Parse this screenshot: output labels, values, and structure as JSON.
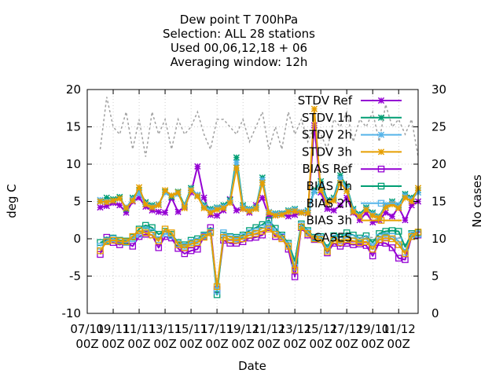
{
  "chart_data": {
    "type": "line",
    "title_lines": [
      "Dew point T 700hPa",
      "Selection: ALL      28 stations",
      "Used  00,06,12,18 + 06",
      "Averaging window: 12h"
    ],
    "xlabel": "Date",
    "ylabel": "deg C",
    "y2label": "No cases",
    "ylim": [
      -10,
      20
    ],
    "y2lim": [
      0,
      30
    ],
    "y_ticks": [
      "-10",
      "-5",
      "0",
      "5",
      "10",
      "15",
      "20"
    ],
    "y2_ticks": [
      "0",
      "5",
      "10",
      "15",
      "20",
      "25",
      "30"
    ],
    "x_ticks": [
      {
        "top": "07/11",
        "bottom": "00Z"
      },
      {
        "top": "09/11",
        "bottom": "00Z"
      },
      {
        "top": "11/11",
        "bottom": "00Z"
      },
      {
        "top": "13/11",
        "bottom": "00Z"
      },
      {
        "top": "15/11",
        "bottom": "00Z"
      },
      {
        "top": "17/11",
        "bottom": "00Z"
      },
      {
        "top": "19/11",
        "bottom": "00Z"
      },
      {
        "top": "21/11",
        "bottom": "00Z"
      },
      {
        "top": "23/11",
        "bottom": "00Z"
      },
      {
        "top": "25/11",
        "bottom": "00Z"
      },
      {
        "top": "27/11",
        "bottom": "00Z"
      },
      {
        "top": "29/11",
        "bottom": "00Z"
      },
      {
        "top": "01/12",
        "bottom": "00Z"
      }
    ],
    "x_range_days": [
      0,
      25.5
    ],
    "x_days": [
      1,
      1.5,
      2,
      2.5,
      3,
      3.5,
      4,
      4.5,
      5,
      5.5,
      6,
      6.5,
      7,
      7.5,
      8,
      8.5,
      9,
      9.5,
      10,
      10.5,
      11,
      11.5,
      12,
      12.5,
      13,
      13.5,
      14,
      14.5,
      15,
      15.5,
      16,
      16.5,
      17,
      17.5,
      18,
      18.5,
      19,
      19.5,
      20,
      20.5,
      21,
      21.5,
      22,
      22.5,
      23,
      23.5,
      24,
      24.5,
      25,
      25.5
    ],
    "series": [
      {
        "name": "STDV Ref",
        "color": "#9400d3",
        "marker": "asterisk",
        "values": [
          4.2,
          4.4,
          4.8,
          4.5,
          3.5,
          5.0,
          5.5,
          4.3,
          3.8,
          3.6,
          3.5,
          5.5,
          3.6,
          4.3,
          6.2,
          9.7,
          5.5,
          3.2,
          3.1,
          3.8,
          5.3,
          3.8,
          4.0,
          3.5,
          4.5,
          5.5,
          3.0,
          3.2,
          3.4,
          3.0,
          3.2,
          3.5,
          3.5,
          15.2,
          6.2,
          4.0,
          3.8,
          4.5,
          5.5,
          3.5,
          2.5,
          3.5,
          2.2,
          2.5,
          3.5,
          3.0,
          4.2,
          2.5,
          4.5,
          5.0
        ]
      },
      {
        "name": "STDV 1h",
        "color": "#009e73",
        "marker": "star",
        "values": [
          5.0,
          5.5,
          5.3,
          5.6,
          4.0,
          5.5,
          6.5,
          4.9,
          4.5,
          4.6,
          6.3,
          5.6,
          6.3,
          4.5,
          6.8,
          5.8,
          4.5,
          4.0,
          4.2,
          4.5,
          5.2,
          10.9,
          4.5,
          4.0,
          4.2,
          8.2,
          3.5,
          3.4,
          3.4,
          3.8,
          4.0,
          3.5,
          3.8,
          6.5,
          7.7,
          5.2,
          5.5,
          8.5,
          7.0,
          4.0,
          3.3,
          4.2,
          3.5,
          3.0,
          4.5,
          5.0,
          4.5,
          6.0,
          5.5,
          6.5
        ]
      },
      {
        "name": "STDV 2h",
        "color": "#56b4e9",
        "marker": "star",
        "values": [
          5.2,
          5.0,
          5.1,
          5.4,
          4.2,
          5.3,
          6.1,
          4.7,
          4.3,
          4.6,
          6.2,
          5.8,
          6.0,
          4.4,
          6.6,
          5.9,
          4.3,
          3.8,
          4.1,
          4.3,
          5.0,
          10.2,
          4.3,
          3.9,
          4.1,
          7.9,
          3.6,
          3.3,
          3.3,
          3.7,
          3.9,
          3.6,
          3.7,
          6.3,
          7.2,
          5.0,
          5.3,
          8.1,
          6.7,
          3.8,
          3.1,
          4.0,
          3.3,
          2.9,
          4.4,
          4.8,
          4.3,
          5.8,
          5.3,
          6.2
        ]
      },
      {
        "name": "STDV 3h",
        "color": "#e69f00",
        "marker": "star",
        "values": [
          5.0,
          4.9,
          5.1,
          5.4,
          4.1,
          5.1,
          6.9,
          4.6,
          4.2,
          4.5,
          6.5,
          5.8,
          6.2,
          4.1,
          6.5,
          5.7,
          4.1,
          3.5,
          3.9,
          4.1,
          4.8,
          9.5,
          4.0,
          3.7,
          4.0,
          7.5,
          3.5,
          3.1,
          3.2,
          3.6,
          3.7,
          3.5,
          3.4,
          17.4,
          6.5,
          4.8,
          5.1,
          7.5,
          6.4,
          3.6,
          3.0,
          3.9,
          3.1,
          2.8,
          4.2,
          4.6,
          4.1,
          5.5,
          5.0,
          6.8
        ]
      },
      {
        "name": "BIAS Ref",
        "color": "#9400d3",
        "marker": "square",
        "values": [
          -2.1,
          0.2,
          -0.5,
          -0.8,
          -0.5,
          -1.0,
          0.3,
          0.6,
          0.5,
          -1.2,
          0.3,
          0.1,
          -1.3,
          -2.0,
          -1.6,
          -1.4,
          0.3,
          1.5,
          -6.8,
          -0.2,
          -0.6,
          -0.6,
          -0.4,
          0.1,
          0.2,
          0.5,
          1.5,
          0.3,
          0.2,
          -1.4,
          -5.1,
          1.5,
          0.5,
          -0.1,
          -0.1,
          -1.9,
          -0.6,
          -1.0,
          -0.6,
          -0.8,
          -0.7,
          -0.9,
          -2.3,
          -0.5,
          -0.6,
          -1.2,
          -2.6,
          -2.8,
          0.3,
          0.5
        ]
      },
      {
        "name": "BIAS 1h",
        "color": "#009e73",
        "marker": "square",
        "values": [
          -0.5,
          -0.2,
          0.1,
          -0.2,
          -0.3,
          0.2,
          1.3,
          1.8,
          1.5,
          0.6,
          1.0,
          0.6,
          -0.5,
          -0.8,
          -0.2,
          0.0,
          0.5,
          1.0,
          -7.5,
          0.5,
          0.3,
          0.2,
          0.5,
          1.1,
          1.5,
          1.9,
          2.5,
          1.4,
          0.5,
          -0.6,
          -3.0,
          2.0,
          1.1,
          0.2,
          0.3,
          -1.2,
          0.4,
          0.2,
          0.8,
          0.5,
          0.1,
          0.4,
          -0.5,
          0.7,
          1.0,
          1.1,
          1.0,
          -1.1,
          0.7,
          0.8
        ]
      },
      {
        "name": "BIAS 2h",
        "color": "#56b4e9",
        "marker": "square",
        "values": [
          -1.0,
          -0.3,
          0.0,
          -0.3,
          -0.5,
          0.0,
          0.6,
          1.2,
          0.9,
          -0.1,
          0.7,
          0.4,
          -0.7,
          -1.0,
          -0.5,
          -0.3,
          0.4,
          0.9,
          -7.0,
          0.8,
          0.2,
          0.0,
          0.3,
          0.8,
          1.0,
          1.4,
          1.9,
          1.0,
          0.3,
          -0.8,
          -3.8,
          1.8,
          0.9,
          0.1,
          0.1,
          -1.5,
          0.1,
          -0.2,
          0.2,
          0.1,
          -0.2,
          0.0,
          -1.0,
          0.2,
          0.4,
          0.3,
          -0.3,
          -1.8,
          0.5,
          0.6
        ]
      },
      {
        "name": "BIAS 3h",
        "color": "#e69f00",
        "marker": "square",
        "values": [
          -1.6,
          -0.4,
          -0.2,
          -0.3,
          -0.4,
          0.3,
          1.1,
          0.8,
          0.5,
          -0.3,
          1.3,
          0.8,
          -0.8,
          -1.2,
          -0.7,
          -0.5,
          0.2,
          0.8,
          -6.4,
          0.2,
          -0.1,
          -0.2,
          0.0,
          0.5,
          0.7,
          1.0,
          1.3,
          0.6,
          0.0,
          -1.0,
          -4.2,
          1.6,
          0.7,
          0.0,
          -0.1,
          -1.7,
          -0.2,
          -0.5,
          -0.1,
          -0.3,
          -0.5,
          -0.4,
          -1.4,
          -0.1,
          0.1,
          0.0,
          -0.8,
          -2.0,
          0.3,
          0.9
        ]
      },
      {
        "name": "CASES",
        "color": "#a0a0a0",
        "marker": "none",
        "axis": "y2",
        "values": [
          22,
          29,
          25,
          24,
          27,
          22,
          26,
          21,
          27,
          24,
          26,
          22,
          26,
          24,
          25,
          27,
          24,
          22,
          26,
          26,
          25,
          24,
          26,
          23,
          25,
          27,
          22,
          25,
          22,
          27,
          24,
          26,
          23,
          25,
          24,
          22,
          26,
          25,
          27,
          23,
          26,
          25,
          27,
          23,
          28,
          25,
          26,
          24,
          26,
          21
        ]
      }
    ],
    "legend_position": "top-right"
  }
}
